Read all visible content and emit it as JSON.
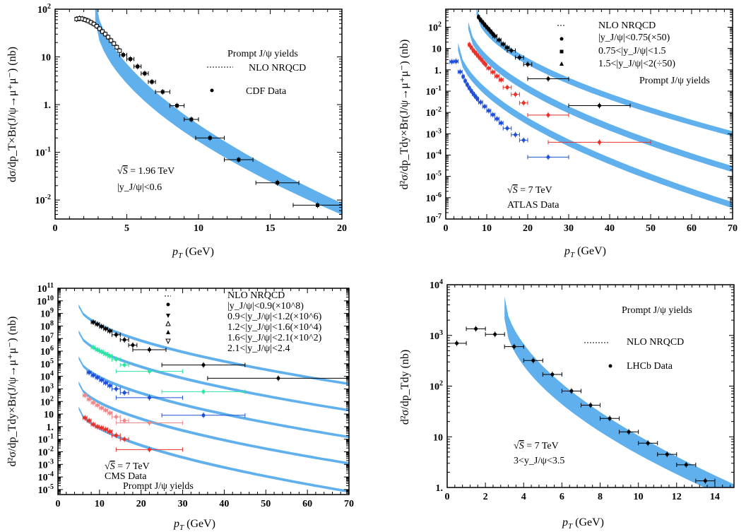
{
  "colors": {
    "band": "#5fb0ec",
    "black": "#000000",
    "red": "#e8312a",
    "blue": "#1f4fd6",
    "green": "#2ee6a0",
    "pink": "#f08a8a"
  },
  "chart_data": [
    {
      "type": "scatter",
      "xlim": [
        0,
        20
      ],
      "ylim": [
        0.004,
        100
      ],
      "yscale": "log",
      "xticks": [
        "0",
        "5",
        "10",
        "15",
        "20"
      ],
      "yticks": [
        "10^-2",
        "10^-1",
        "1.",
        "10",
        "10^2"
      ],
      "xlabel": {
        "p": "p",
        "sub": "T",
        "rest": " (GeV)"
      },
      "ylabel": "dσ/dp_T×Br(J/ψ→μ⁺μ⁻) (nb)",
      "annotations": {
        "title": "Prompt J/ψ yields",
        "theory": "NLO NRQCD",
        "data": "CDF Data",
        "energy": "= 1.96 TeV",
        "rapidity": "|y_J/ψ|<0.6"
      },
      "band": {
        "x0": 2.8,
        "x1": 20,
        "y0": 100,
        "y1": 0.0065,
        "w0": 0.22,
        "w1": 0.12
      },
      "series": [
        {
          "symbol": "open-square",
          "color": "#000000",
          "x": [
            1.5,
            1.7,
            1.9,
            2.1,
            2.3,
            2.5,
            2.7,
            2.9,
            3.1,
            3.3,
            3.5,
            3.7,
            3.9,
            4.1,
            4.3,
            4.5
          ],
          "y": [
            62,
            64,
            63,
            60,
            57,
            53,
            49,
            44,
            39,
            34,
            30,
            26,
            22,
            19,
            16,
            13.5
          ]
        },
        {
          "symbol": "filled-square",
          "color": "#000000",
          "x": [
            4.75,
            5.25,
            5.75,
            6.25,
            6.75,
            7.5,
            8.5,
            9.5,
            10.8,
            12.8,
            15.5,
            18.3
          ],
          "y": [
            11,
            9,
            6.3,
            4.5,
            3,
            1.85,
            0.95,
            0.49,
            0.2,
            0.07,
            0.023,
            0.0078
          ],
          "xerr": [
            0.25,
            0.25,
            0.25,
            0.25,
            0.25,
            0.5,
            0.5,
            0.5,
            1,
            1,
            1.5,
            1.7
          ]
        }
      ]
    },
    {
      "type": "scatter",
      "xlim": [
        0,
        70
      ],
      "ylim": [
        1e-07,
        700
      ],
      "yscale": "log",
      "xticks": [
        "0",
        "10",
        "20",
        "30",
        "40",
        "50",
        "60",
        "70"
      ],
      "yticks": [
        "10^-7",
        "10^-6",
        "10^-5",
        "10^-4",
        "10^-3",
        "10^-2",
        "10^-1",
        "1.",
        "10",
        "10^2"
      ],
      "xlabel": {
        "p": "p",
        "sub": "T",
        "rest": " (GeV)"
      },
      "ylabel": "d²σ/dp_Tdy×Br(J/ψ→μ⁺μ⁻) (nb)",
      "annotations": {
        "theory": "NLO NRQCD",
        "legend1": "|y_J/ψ|<0.75(×50)",
        "legend2": "0.75<|y_J/ψ|<1.5",
        "legend3": "1.5<|y_J/ψ|<2(÷50)",
        "title": "Prompt J/ψ yields",
        "energy": "= 7 TeV",
        "source": "ATLAS Data"
      },
      "bands": [
        {
          "x0": 7.5,
          "x1": 70,
          "y0": 600,
          "y1": 0.001,
          "w0": 0.16,
          "w1": 0.12
        },
        {
          "x0": 5.5,
          "x1": 70,
          "y0": 120,
          "y1": 2.2e-05,
          "w0": 0.18,
          "w1": 0.14
        },
        {
          "x0": 3,
          "x1": 70,
          "y0": 12,
          "y1": 4.5e-07,
          "w0": 0.18,
          "w1": 0.14
        }
      ],
      "series": [
        {
          "name": "|y|<0.75",
          "color": "#000000",
          "x": [
            8,
            8.5,
            9,
            9.5,
            10,
            10.5,
            11,
            11.5,
            12,
            13,
            14,
            15,
            16,
            18,
            20,
            25,
            37.5
          ],
          "y": [
            300,
            220,
            170,
            130,
            100,
            80,
            62,
            48,
            38,
            25,
            16,
            11,
            8,
            3.8,
            1.8,
            0.38,
            0.021
          ],
          "xerr": [
            0.25,
            0.25,
            0.25,
            0.25,
            0.25,
            0.25,
            0.25,
            0.25,
            0.5,
            0.5,
            0.5,
            0.5,
            1,
            1,
            1,
            5,
            7.5
          ]
        },
        {
          "name": "0.75<|y|<1.5",
          "color": "#e8312a",
          "x": [
            5.75,
            6.25,
            6.75,
            7.25,
            7.75,
            8.25,
            8.75,
            9.25,
            9.75,
            10.5,
            11.5,
            12.5,
            13.5,
            15,
            17,
            19,
            25,
            37.5
          ],
          "y": [
            15,
            11,
            8,
            6.2,
            4.8,
            3.7,
            2.9,
            2.2,
            1.75,
            1.2,
            0.78,
            0.5,
            0.34,
            0.15,
            0.07,
            0.028,
            0.0075,
            0.0004
          ],
          "xerr": [
            0.25,
            0.25,
            0.25,
            0.25,
            0.25,
            0.25,
            0.25,
            0.25,
            0.25,
            0.5,
            0.5,
            0.5,
            0.5,
            1,
            1,
            1,
            5,
            12.5
          ]
        },
        {
          "name": "1.5<|y|<2",
          "color": "#1f4fd6",
          "x": [
            1.5,
            2.5,
            3.5,
            4.25,
            4.75,
            5.25,
            5.75,
            6.25,
            6.75,
            7.25,
            7.75,
            8.5,
            9.5,
            10.5,
            11.5,
            12.5,
            13.5,
            15,
            17,
            19,
            25
          ],
          "y": [
            2.4,
            2.5,
            0.8,
            0.48,
            0.3,
            0.2,
            0.14,
            0.1,
            0.074,
            0.056,
            0.043,
            0.03,
            0.019,
            0.012,
            0.0078,
            0.005,
            0.0032,
            0.0018,
            0.0009,
            0.0005,
            8e-05
          ],
          "xerr": [
            0.5,
            0.5,
            0.5,
            0.25,
            0.25,
            0.25,
            0.25,
            0.25,
            0.25,
            0.25,
            0.25,
            0.5,
            0.5,
            0.5,
            0.5,
            0.5,
            0.5,
            1,
            1,
            1,
            5
          ]
        }
      ]
    },
    {
      "type": "scatter",
      "xlim": [
        0,
        70
      ],
      "ylim": [
        4e-06,
        100000000000.0
      ],
      "yscale": "log",
      "xticks": [
        "0",
        "10",
        "20",
        "30",
        "40",
        "50",
        "60",
        "70"
      ],
      "yticks": [
        "10^-5",
        "10^-4",
        "10^-3",
        "10^-2",
        "10^-1",
        "1.",
        "10",
        "10^2",
        "10^3",
        "10^4",
        "10^5",
        "10^6",
        "10^7",
        "10^8",
        "10^9",
        "10^10",
        "10^11"
      ],
      "xlabel": {
        "p": "p",
        "sub": "T",
        "rest": " (GeV)"
      },
      "ylabel": "d²σ/dp_Tdy×Br(J/ψ→μ⁺μ⁻) (nb)",
      "annotations": {
        "theory": "NLO NRQCD",
        "legend1": "|y_J/ψ|<0.9(×10^8)",
        "legend2": "0.9<|y_J/ψ|<1.2(×10^6)",
        "legend3": "1.2<|y_J/ψ|<1.6(×10^4)",
        "legend4": "1.6<|y_J/ψ|<2.1(×10^2)",
        "legend5": "2.1<|y_J/ψ|<2.4",
        "energy": "= 7 TeV",
        "source": "CMS Data",
        "title": "Prompt J/ψ yields"
      },
      "bands": [
        {
          "x0": 5,
          "x1": 70,
          "y0": 4000000000.0,
          "y1": 2500.0,
          "w0": 0.12,
          "w1": 0.1
        },
        {
          "x0": 5,
          "x1": 70,
          "y0": 35000000.0,
          "y1": 20,
          "w0": 0.12,
          "w1": 0.1
        },
        {
          "x0": 5,
          "x1": 70,
          "y0": 300000.0,
          "y1": 0.15,
          "w0": 0.12,
          "w1": 0.1
        },
        {
          "x0": 5,
          "x1": 70,
          "y0": 3000.0,
          "y1": 0.0012,
          "w0": 0.12,
          "w1": 0.1
        },
        {
          "x0": 5,
          "x1": 70,
          "y0": 30,
          "y1": 7e-06,
          "w0": 0.12,
          "w1": 0.1
        }
      ],
      "series": [
        {
          "name": "|y|<0.9",
          "color": "#000000",
          "x": [
            8.5,
            9.5,
            10.5,
            11.5,
            12.5,
            14,
            16,
            18,
            22,
            35,
            53
          ],
          "y": [
            200000000.0,
            140000000.0,
            90000000.0,
            60000000.0,
            40000000.0,
            20000000.0,
            8000000.0,
            3000000.0,
            1300000.0,
            80000.0,
            7000.0
          ],
          "xerr": [
            0.5,
            0.5,
            0.5,
            0.5,
            0.5,
            1,
            1,
            1,
            4,
            10,
            17
          ]
        },
        {
          "name": "0.9<|y|<1.2",
          "color": "#2ee6a0",
          "x": [
            8.5,
            9.5,
            10.5,
            11.5,
            12.5,
            14,
            16,
            22,
            35
          ],
          "y": [
            2000000.0,
            1300000.0,
            900000.0,
            600000.0,
            400000.0,
            220000.0,
            80000.0,
            25000.0,
            600
          ],
          "xerr": [
            0.5,
            0.5,
            0.5,
            0.5,
            0.5,
            1,
            1,
            8,
            10
          ]
        },
        {
          "name": "1.2<|y|<1.6",
          "color": "#1f4fd6",
          "x": [
            7.5,
            8.5,
            9.5,
            10.5,
            11.5,
            12.5,
            14,
            16,
            22,
            35
          ],
          "y": [
            20000.0,
            12000.0,
            8000.0,
            5000.0,
            3000.0,
            1800.0,
            1000.0,
            500,
            200.0,
            8
          ],
          "xerr": [
            0.5,
            0.5,
            0.5,
            0.5,
            0.5,
            0.5,
            1,
            1,
            8,
            10
          ]
        },
        {
          "name": "1.6<|y|<2.1",
          "color": "#f08a8a",
          "x": [
            6.5,
            7.5,
            8.5,
            9.5,
            10.5,
            11.5,
            12.5,
            14,
            16,
            22
          ],
          "y": [
            300,
            150,
            80,
            50,
            30,
            20,
            12,
            6,
            3,
            2
          ],
          "xerr": [
            0.5,
            0.5,
            0.5,
            0.5,
            0.5,
            0.5,
            0.5,
            1,
            1,
            8
          ]
        },
        {
          "name": "2.1<|y|<2.4",
          "color": "#e8312a",
          "x": [
            6.5,
            7.5,
            8.5,
            9.5,
            10.5,
            11.5,
            12.5,
            14,
            16,
            22
          ],
          "y": [
            5,
            3,
            1.5,
            1,
            0.8,
            0.6,
            0.4,
            0.2,
            0.1,
            0.015
          ],
          "xerr": [
            0.5,
            0.5,
            0.5,
            0.5,
            0.5,
            0.5,
            0.5,
            1,
            1,
            8
          ]
        }
      ]
    },
    {
      "type": "scatter",
      "xlim": [
        0,
        15
      ],
      "ylim": [
        1,
        10000
      ],
      "yscale": "log",
      "xticks": [
        "0",
        "2",
        "4",
        "6",
        "8",
        "10",
        "12",
        "14"
      ],
      "yticks": [
        "1.",
        "10",
        "10^2",
        "10^3",
        "10^4"
      ],
      "xlabel": {
        "p": "p",
        "sub": "T",
        "rest": " (GeV)"
      },
      "ylabel": "d²σ/dp_Tdy (nb)",
      "annotations": {
        "title": "Prompt J/ψ yields",
        "theory": "NLO NRQCD",
        "data": "LHCb Data",
        "energy": "= 7 TeV",
        "rapidity": "3<y_J/ψ<3.5"
      },
      "band": {
        "x0": 3,
        "x1": 15,
        "y0": 3500,
        "y1": 0.8,
        "w0": 0.22,
        "w1": 0.16
      },
      "series": [
        {
          "symbol": "filled-circle",
          "color": "#000000",
          "x": [
            0.5,
            1.5,
            2.5,
            3.5,
            4.5,
            5.5,
            6.5,
            7.5,
            8.5,
            9.5,
            10.5,
            11.5,
            12.5,
            13.5
          ],
          "y": [
            700,
            1350,
            1050,
            600,
            320,
            170,
            80,
            42,
            23,
            12.5,
            7.5,
            4.5,
            2.8,
            1.35
          ],
          "xerr": [
            0.5,
            0.5,
            0.5,
            0.5,
            0.5,
            0.5,
            0.5,
            0.5,
            0.5,
            0.5,
            0.5,
            0.5,
            0.5,
            0.5
          ]
        }
      ]
    }
  ]
}
